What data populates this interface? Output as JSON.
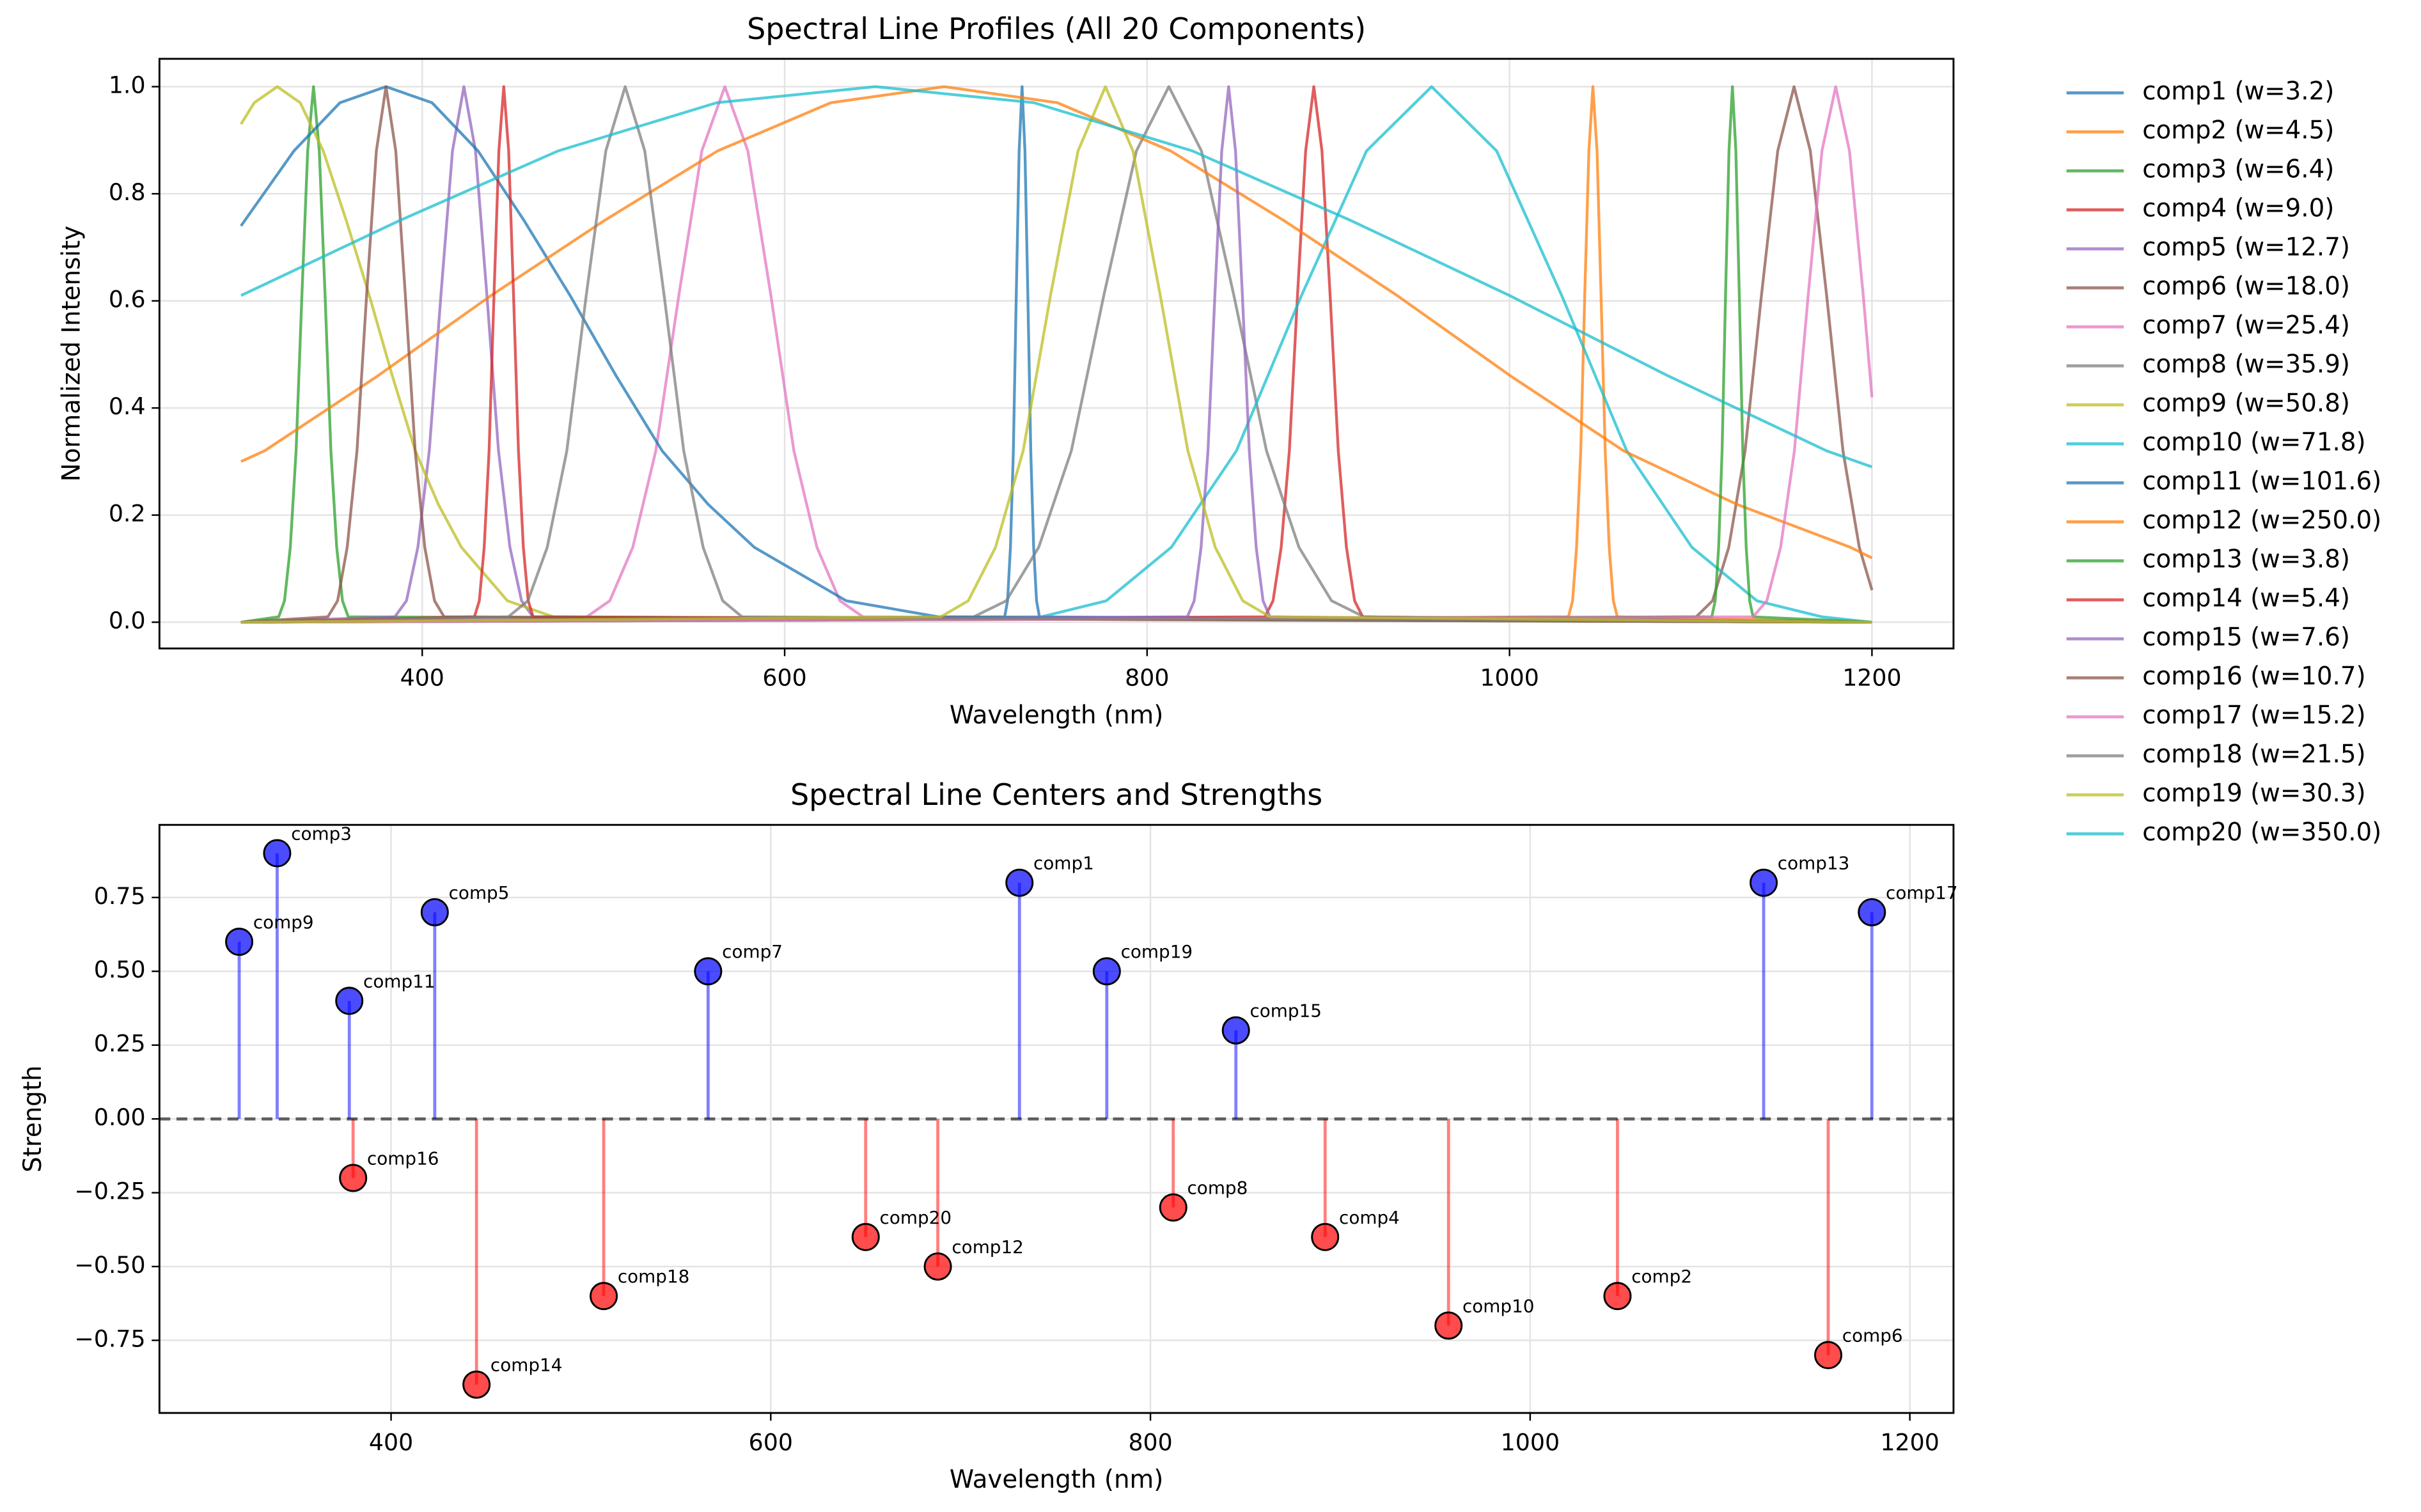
{
  "chart_data": [
    {
      "type": "line",
      "title": "Spectral Line Profiles (All 20 Components)",
      "xlabel": "Wavelength (nm)",
      "ylabel": "Normalized Intensity",
      "xlim": [
        255,
        1245
      ],
      "ylim": [
        -0.049,
        1.052
      ],
      "xticks": [
        400,
        600,
        800,
        1000,
        1200
      ],
      "yticks": [
        {
          "value": 0,
          "label": "0.0"
        },
        0.2,
        0.4,
        0.6,
        0.8,
        {
          "value": 1,
          "label": "1.0"
        }
      ],
      "grid": true,
      "legend": "outside right",
      "series": [
        {
          "name": "comp1 (w=3.2)",
          "color": "#1f77b4",
          "x": [
            300,
            721.4,
            723,
            724.6,
            726.2,
            727.8,
            729.4,
            731,
            732.6,
            734.2,
            735.8,
            737.4,
            739,
            740.6,
            1200
          ],
          "values": [
            0,
            0.01,
            0.04,
            0.14,
            0.32,
            0.61,
            0.88,
            1,
            0.88,
            0.61,
            0.32,
            0.14,
            0.04,
            0.01,
            0
          ]
        },
        {
          "name": "comp2 (w=4.5)",
          "color": "#ff7f0e",
          "x": [
            300,
            1032.5,
            1034.8,
            1037,
            1039.3,
            1041.5,
            1043.8,
            1046,
            1048.3,
            1050.5,
            1052.8,
            1055,
            1057.3,
            1059.5,
            1200
          ],
          "values": [
            0,
            0.01,
            0.04,
            0.14,
            0.32,
            0.61,
            0.88,
            1,
            0.88,
            0.61,
            0.32,
            0.14,
            0.04,
            0.01,
            0
          ]
        },
        {
          "name": "comp3 (w=6.4)",
          "color": "#2ca02c",
          "x": [
            300,
            320.8,
            324,
            327.2,
            330.4,
            333.6,
            336.8,
            340,
            343.2,
            346.4,
            349.6,
            352.8,
            356,
            359.2,
            1200
          ],
          "values": [
            0,
            0.01,
            0.04,
            0.14,
            0.32,
            0.61,
            0.88,
            1,
            0.88,
            0.61,
            0.32,
            0.14,
            0.04,
            0.01,
            0
          ]
        },
        {
          "name": "comp4 (w=9.0)",
          "color": "#d62728",
          "x": [
            300,
            865,
            869.5,
            874,
            878.5,
            883,
            887.5,
            892,
            896.5,
            901,
            905.5,
            910,
            914.5,
            919,
            1200
          ],
          "values": [
            0,
            0.01,
            0.04,
            0.14,
            0.32,
            0.61,
            0.88,
            1,
            0.88,
            0.61,
            0.32,
            0.14,
            0.04,
            0.01,
            0
          ]
        },
        {
          "name": "comp5 (w=12.7)",
          "color": "#9467bd",
          "x": [
            300,
            384.9,
            391.3,
            397.6,
            403.9,
            410.3,
            416.7,
            423,
            429.4,
            435.7,
            442.1,
            448.4,
            454.8,
            461.1,
            1200
          ],
          "values": [
            0,
            0.01,
            0.04,
            0.14,
            0.32,
            0.61,
            0.88,
            1,
            0.88,
            0.61,
            0.32,
            0.14,
            0.04,
            0.01,
            0
          ]
        },
        {
          "name": "comp6 (w=18.0)",
          "color": "#8c564b",
          "x": [
            300,
            1103,
            1112,
            1121,
            1130,
            1139,
            1148,
            1157,
            1166,
            1175,
            1184,
            1193,
            1200
          ],
          "values": [
            0,
            0.01,
            0.04,
            0.14,
            0.32,
            0.61,
            0.88,
            1,
            0.88,
            0.61,
            0.32,
            0.14,
            0.06
          ]
        },
        {
          "name": "comp7 (w=25.4)",
          "color": "#e377c2",
          "x": [
            300,
            490.8,
            503.5,
            516.2,
            528.9,
            541.6,
            554.3,
            567,
            579.7,
            592.4,
            605.1,
            617.8,
            630.5,
            643.2,
            1200
          ],
          "values": [
            0,
            0.01,
            0.04,
            0.14,
            0.32,
            0.61,
            0.88,
            1,
            0.88,
            0.61,
            0.32,
            0.14,
            0.04,
            0.01,
            0
          ]
        },
        {
          "name": "comp8 (w=35.9)",
          "color": "#7f7f7f",
          "x": [
            300,
            704.3,
            722.3,
            740.2,
            758.2,
            776.1,
            794.1,
            812,
            830,
            847.9,
            865.9,
            883.8,
            901.8,
            919.7,
            1200
          ],
          "values": [
            0,
            0.01,
            0.04,
            0.14,
            0.32,
            0.61,
            0.88,
            1,
            0.88,
            0.61,
            0.32,
            0.14,
            0.04,
            0.01,
            0
          ]
        },
        {
          "name": "comp9 (w=50.8)",
          "color": "#bcbd22",
          "x": [
            300,
            307.3,
            320,
            332.7,
            345.4,
            358.1,
            370.8,
            383.5,
            396.2,
            408.9,
            421.6,
            447,
            472.4,
            1200
          ],
          "values": [
            0.93,
            0.97,
            1,
            0.97,
            0.88,
            0.75,
            0.61,
            0.46,
            0.32,
            0.22,
            0.14,
            0.04,
            0.01,
            0
          ]
        },
        {
          "name": "comp10 (w=71.8)",
          "color": "#17becf",
          "x": [
            300,
            741.6,
            777.5,
            813.4,
            849.3,
            885.2,
            921.1,
            957,
            992.9,
            1028.8,
            1064.7,
            1100.6,
            1136.5,
            1172.4,
            1200
          ],
          "values": [
            0,
            0.01,
            0.04,
            0.14,
            0.32,
            0.61,
            0.88,
            1,
            0.88,
            0.61,
            0.32,
            0.14,
            0.04,
            0.01,
            0
          ]
        },
        {
          "name": "comp11 (w=101.6)",
          "color": "#1f77b4",
          "x": [
            300,
            329.2,
            354.6,
            380,
            405.4,
            430.8,
            456.2,
            481.6,
            507,
            532.4,
            557.8,
            583.2,
            634,
            684.8,
            1200
          ],
          "values": [
            0.74,
            0.88,
            0.97,
            1,
            0.97,
            0.88,
            0.75,
            0.61,
            0.46,
            0.32,
            0.22,
            0.14,
            0.04,
            0.01,
            0
          ]
        },
        {
          "name": "comp12 (w=250.0)",
          "color": "#ff7f0e",
          "x": [
            300,
            313,
            375.5,
            438,
            500.5,
            563,
            625.5,
            688,
            750.5,
            813,
            875.5,
            938,
            1000.5,
            1063,
            1125.5,
            1188,
            1200
          ],
          "values": [
            0.3,
            0.32,
            0.46,
            0.61,
            0.75,
            0.88,
            0.97,
            1,
            0.97,
            0.88,
            0.75,
            0.61,
            0.46,
            0.32,
            0.22,
            0.14,
            0.12
          ]
        },
        {
          "name": "comp13 (w=3.8)",
          "color": "#2ca02c",
          "x": [
            300,
            1111.6,
            1113.5,
            1115.4,
            1117.3,
            1119.2,
            1121.1,
            1123,
            1124.9,
            1126.8,
            1128.7,
            1130.6,
            1132.5,
            1134.4,
            1200
          ],
          "values": [
            0,
            0.01,
            0.04,
            0.14,
            0.32,
            0.61,
            0.88,
            1,
            0.88,
            0.61,
            0.32,
            0.14,
            0.04,
            0.01,
            0
          ]
        },
        {
          "name": "comp14 (w=5.4)",
          "color": "#d62728",
          "x": [
            300,
            428.8,
            431.5,
            434.2,
            436.9,
            439.6,
            442.3,
            445,
            447.7,
            450.4,
            453.1,
            455.8,
            458.5,
            461.2,
            1200
          ],
          "values": [
            0,
            0.01,
            0.04,
            0.14,
            0.32,
            0.61,
            0.88,
            1,
            0.88,
            0.61,
            0.32,
            0.14,
            0.04,
            0.01,
            0
          ]
        },
        {
          "name": "comp15 (w=7.6)",
          "color": "#9467bd",
          "x": [
            300,
            822.2,
            826,
            829.8,
            833.6,
            837.4,
            841.2,
            845,
            848.8,
            852.6,
            856.4,
            860.2,
            864,
            867.8,
            1200
          ],
          "values": [
            0,
            0.01,
            0.04,
            0.14,
            0.32,
            0.61,
            0.88,
            1,
            0.88,
            0.61,
            0.32,
            0.14,
            0.04,
            0.01,
            0
          ]
        },
        {
          "name": "comp16 (w=10.7)",
          "color": "#8c564b",
          "x": [
            300,
            347.9,
            353.3,
            358.6,
            364,
            369.3,
            374.7,
            380,
            385.4,
            390.7,
            396.1,
            401.4,
            406.8,
            412.1,
            1200
          ],
          "values": [
            0,
            0.01,
            0.04,
            0.14,
            0.32,
            0.61,
            0.88,
            1,
            0.88,
            0.61,
            0.32,
            0.14,
            0.04,
            0.01,
            0
          ]
        },
        {
          "name": "comp17 (w=15.2)",
          "color": "#e377c2",
          "x": [
            300,
            1134.4,
            1142,
            1149.6,
            1157.2,
            1164.8,
            1172.4,
            1180,
            1187.6,
            1195.2,
            1200
          ],
          "values": [
            0,
            0.01,
            0.04,
            0.14,
            0.32,
            0.61,
            0.88,
            1,
            0.88,
            0.61,
            0.42
          ]
        },
        {
          "name": "comp18 (w=21.5)",
          "color": "#7f7f7f",
          "x": [
            300,
            447.5,
            458.3,
            469,
            479.8,
            490.5,
            501.3,
            512,
            522.8,
            533.5,
            544.3,
            555,
            565.8,
            576.5,
            1200
          ],
          "values": [
            0,
            0.01,
            0.04,
            0.14,
            0.32,
            0.61,
            0.88,
            1,
            0.88,
            0.61,
            0.32,
            0.14,
            0.04,
            0.01,
            0
          ]
        },
        {
          "name": "comp19 (w=30.3)",
          "color": "#bcbd22",
          "x": [
            300,
            686.1,
            701.3,
            716.4,
            731.6,
            746.7,
            761.9,
            777,
            792.2,
            807.3,
            822.5,
            837.6,
            852.8,
            867.9,
            1200
          ],
          "values": [
            0,
            0.01,
            0.04,
            0.14,
            0.32,
            0.61,
            0.88,
            1,
            0.88,
            0.61,
            0.32,
            0.14,
            0.04,
            0.01,
            0
          ]
        },
        {
          "name": "comp20 (w=350.0)",
          "color": "#17becf",
          "x": [
            300,
            387.5,
            475,
            562.5,
            650,
            737.5,
            825,
            912.5,
            1000,
            1087.5,
            1175,
            1200
          ],
          "values": [
            0.61,
            0.75,
            0.88,
            0.97,
            1,
            0.97,
            0.88,
            0.75,
            0.61,
            0.46,
            0.32,
            0.29
          ]
        }
      ]
    },
    {
      "type": "stem",
      "title": "Spectral Line Centers and Strengths",
      "xlabel": "Wavelength (nm)",
      "ylabel": "Strength",
      "xlim": [
        278,
        1223
      ],
      "ylim": [
        -0.996,
        0.996
      ],
      "xticks": [
        400,
        600,
        800,
        1000,
        1200
      ],
      "yticks": [
        {
          "value": -0.75,
          "label": "−0.75"
        },
        {
          "value": -0.5,
          "label": "−0.50"
        },
        {
          "value": -0.25,
          "label": "−0.25"
        },
        {
          "value": 0,
          "label": "0.00"
        },
        0.25,
        {
          "value": 0.5,
          "label": "0.50"
        },
        0.75
      ],
      "grid": true,
      "positive_color": "#0000ff",
      "negative_color": "#ff0000",
      "labels": [
        "comp1",
        "comp2",
        "comp3",
        "comp4",
        "comp5",
        "comp6",
        "comp7",
        "comp8",
        "comp9",
        "comp10",
        "comp11",
        "comp12",
        "comp13",
        "comp14",
        "comp15",
        "comp16",
        "comp17",
        "comp18",
        "comp19",
        "comp20"
      ],
      "x": [
        731,
        1046,
        340,
        892,
        423,
        1157,
        567,
        812,
        320,
        957,
        378,
        688,
        1123,
        445,
        845,
        380,
        1180,
        512,
        777,
        650
      ],
      "values": [
        0.8,
        -0.6,
        0.9,
        -0.4,
        0.7,
        -0.8,
        0.5,
        -0.3,
        0.6,
        -0.7,
        0.4,
        -0.5,
        0.8,
        -0.9,
        0.3,
        -0.2,
        0.7,
        -0.6,
        0.5,
        -0.4
      ]
    }
  ]
}
